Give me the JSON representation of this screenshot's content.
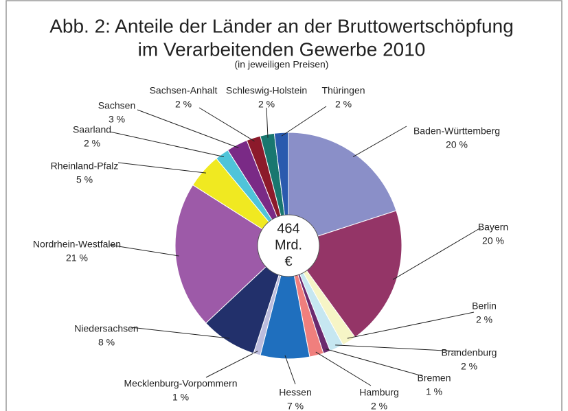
{
  "chart_data": {
    "type": "pie",
    "title_lines": [
      "Abb. 2: Anteile der Länder an der Bruttowertschöpfung",
      "im Verarbeitenden Gewerbe 2010"
    ],
    "subtitle": "(in jeweiligen Preisen)",
    "center_label": [
      "464",
      "Mrd.",
      "€"
    ],
    "categories": [
      "Baden-Württemberg",
      "Bayern",
      "Berlin",
      "Brandenburg",
      "Bremen",
      "Hamburg",
      "Hessen",
      "Mecklenburg-Vorpommern",
      "Niedersachsen",
      "Nordrhein-Westfalen",
      "Rheinland-Pfalz",
      "Saarland",
      "Sachsen",
      "Sachsen-Anhalt",
      "Schleswig-Holstein",
      "Thüringen"
    ],
    "values": [
      20,
      20,
      2,
      2,
      1,
      2,
      7,
      1,
      8,
      21,
      5,
      2,
      3,
      2,
      2,
      2
    ],
    "value_labels": [
      "20 %",
      "20 %",
      "2 %",
      "2 %",
      "1 %",
      "2 %",
      "7 %",
      "1 %",
      "8 %",
      "21 %",
      "5 %",
      "2 %",
      "3 %",
      "2 %",
      "2 %",
      "2 %"
    ],
    "colors": [
      "#8a8fc8",
      "#943567",
      "#f6f5c6",
      "#c6e7f1",
      "#6b2a6e",
      "#f07f7d",
      "#1f6fbe",
      "#bcbcdd",
      "#22306b",
      "#9d5aa8",
      "#f0e921",
      "#4fc4d9",
      "#7a2a86",
      "#8c1a2b",
      "#19776f",
      "#2a5aae"
    ]
  }
}
